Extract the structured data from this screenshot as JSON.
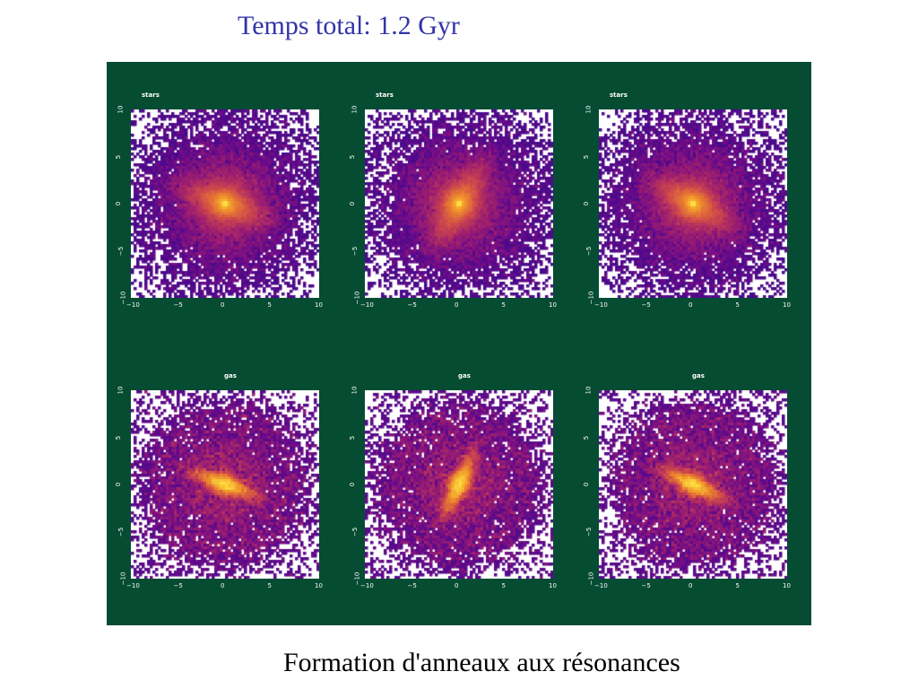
{
  "slide": {
    "title": "Temps total: 1.2 Gyr",
    "caption": "Formation d'anneaux aux résonances",
    "title_color": "#3333aa",
    "panel_color": "#054c33"
  },
  "panels": [
    {
      "id": "stars-1",
      "title": "stars",
      "component": "stars",
      "bar_angle_deg": -20,
      "ring": false
    },
    {
      "id": "stars-2",
      "title": "stars",
      "component": "stars",
      "bar_angle_deg": 60,
      "ring": false
    },
    {
      "id": "stars-3",
      "title": "stars",
      "component": "stars",
      "bar_angle_deg": -30,
      "ring": false
    },
    {
      "id": "gas-1",
      "title": "gas",
      "component": "gas",
      "bar_angle_deg": -20,
      "ring": true
    },
    {
      "id": "gas-2",
      "title": "gas",
      "component": "gas",
      "bar_angle_deg": 65,
      "ring": true
    },
    {
      "id": "gas-3",
      "title": "gas",
      "component": "gas",
      "bar_angle_deg": -25,
      "ring": true
    }
  ],
  "axes": {
    "x_ticks": [
      "−10",
      "−5",
      "0",
      "5",
      "10"
    ],
    "y_ticks": [
      "−10",
      "−5",
      "0",
      "5",
      "10"
    ],
    "xlim": [
      -10,
      10
    ],
    "ylim": [
      -10,
      10
    ]
  },
  "colormap": [
    "#2b0a8a",
    "#6a0a8a",
    "#a0206e",
    "#d04a4a",
    "#f0902a",
    "#ffe040"
  ]
}
